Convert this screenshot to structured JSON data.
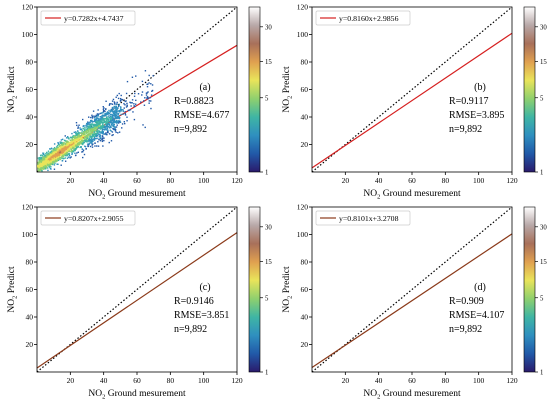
{
  "chart_data": [
    {
      "type": "scatter",
      "panel_label": "(a)",
      "xlabel": {
        "main": "NO",
        "sub": "2",
        "rest": " Ground mesurement"
      },
      "ylabel": {
        "main": "NO",
        "sub": "2",
        "rest": " Predict"
      },
      "xlim": [
        0,
        120
      ],
      "ylim": [
        0,
        120
      ],
      "xticks": [
        20,
        40,
        60,
        80,
        100,
        120
      ],
      "yticks": [
        20,
        40,
        60,
        80,
        100,
        120
      ],
      "colorbar_ticks": [
        1,
        5,
        15,
        30
      ],
      "fit": {
        "slope": 0.7282,
        "intercept": 4.7437,
        "label": "y=0.7282x+4.7437",
        "color": "#d62020"
      },
      "stats": [
        "R=0.8823",
        "RMSE=4.677",
        "n=9,892"
      ]
    },
    {
      "type": "scatter",
      "panel_label": "(b)",
      "xlabel": {
        "main": "NO",
        "sub": "2",
        "rest": " Ground mesurement"
      },
      "ylabel": {
        "main": "NO",
        "sub": "2",
        "rest": " Predict"
      },
      "xlim": [
        0,
        120
      ],
      "ylim": [
        0,
        120
      ],
      "xticks": [
        20,
        40,
        60,
        80,
        100,
        120
      ],
      "yticks": [
        20,
        40,
        60,
        80,
        100,
        120
      ],
      "colorbar_ticks": [
        1,
        5,
        15,
        30
      ],
      "fit": {
        "slope": 0.816,
        "intercept": 2.9856,
        "label": "y=0.8160x+2.9856",
        "color": "#d62020"
      },
      "stats": [
        "R=0.9117",
        "RMSE=3.895",
        "n=9,892"
      ]
    },
    {
      "type": "scatter",
      "panel_label": "(c)",
      "xlabel": {
        "main": "NO",
        "sub": "2",
        "rest": " Ground mesurement"
      },
      "ylabel": {
        "main": "NO",
        "sub": "2",
        "rest": " Predict"
      },
      "xlim": [
        0,
        120
      ],
      "ylim": [
        0,
        120
      ],
      "xticks": [
        20,
        40,
        60,
        80,
        100,
        120
      ],
      "yticks": [
        20,
        40,
        60,
        80,
        100,
        120
      ],
      "colorbar_ticks": [
        1,
        5,
        15,
        30
      ],
      "fit": {
        "slope": 0.8207,
        "intercept": 2.9055,
        "label": "y=0.8207x+2.9055",
        "color": "#8b3a1a"
      },
      "stats": [
        "R=0.9146",
        "RMSE=3.851",
        "n=9,892"
      ]
    },
    {
      "type": "scatter",
      "panel_label": "(d)",
      "xlabel": {
        "main": "NO",
        "sub": "2",
        "rest": " Ground mesurement"
      },
      "ylabel": {
        "main": "NO",
        "sub": "2",
        "rest": " Predict"
      },
      "xlim": [
        0,
        120
      ],
      "ylim": [
        0,
        120
      ],
      "xticks": [
        20,
        40,
        60,
        80,
        100,
        120
      ],
      "yticks": [
        20,
        40,
        60,
        80,
        100,
        120
      ],
      "colorbar_ticks": [
        1,
        5,
        15,
        30
      ],
      "fit": {
        "slope": 0.8101,
        "intercept": 3.2708,
        "label": "y=0.8101x+3.2708",
        "color": "#8b3a1a"
      },
      "stats": [
        "R=0.909",
        "RMSE=4.107",
        "n=9,892"
      ]
    }
  ],
  "colormap": [
    "#2a1a6b",
    "#2159a8",
    "#2f8fbf",
    "#3fb5a4",
    "#8fd06e",
    "#e9e45a",
    "#e0a050",
    "#a8705a",
    "#b8a8a8",
    "#ffffff"
  ],
  "reference_line": "1:1 dotted"
}
